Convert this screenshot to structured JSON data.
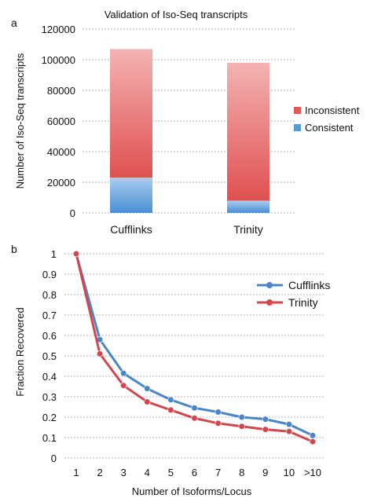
{
  "chart_data": [
    {
      "panel_label": "a",
      "type": "bar",
      "stacked": true,
      "title": "Validation of Iso-Seq transcripts",
      "xlabel": "",
      "ylabel": "Number of Iso-Seq transcripts",
      "categories": [
        "Cufflinks",
        "Trinity"
      ],
      "series": [
        {
          "name": "Consistent",
          "values": [
            23000,
            8000
          ]
        },
        {
          "name": "Inconsistent",
          "values": [
            84000,
            90000
          ]
        }
      ],
      "ylim": [
        0,
        120000
      ],
      "yticks": [
        "0",
        "20000",
        "40000",
        "60000",
        "80000",
        "100000",
        "120000"
      ],
      "grid": true,
      "legend_position": "right",
      "legend_order": [
        "Inconsistent",
        "Consistent"
      ],
      "colors": {
        "Consistent": "#5b9bd5",
        "Inconsistent": "#e05a5a"
      }
    },
    {
      "panel_label": "b",
      "type": "line",
      "title": "",
      "xlabel": "Number of Isoforms/Locus",
      "ylabel": "Fraction Recovered",
      "categories": [
        "1",
        "2",
        "3",
        "4",
        "5",
        "6",
        "7",
        "8",
        "9",
        "10",
        ">10"
      ],
      "series": [
        {
          "name": "Cufflinks",
          "values": [
            1.0,
            0.58,
            0.415,
            0.34,
            0.285,
            0.245,
            0.225,
            0.2,
            0.19,
            0.165,
            0.11
          ]
        },
        {
          "name": "Trinity",
          "values": [
            1.0,
            0.51,
            0.355,
            0.275,
            0.235,
            0.195,
            0.17,
            0.155,
            0.14,
            0.13,
            0.08
          ]
        }
      ],
      "ylim": [
        0,
        1
      ],
      "yticks": [
        "0",
        "0.1",
        "0.2",
        "0.3",
        "0.4",
        "0.5",
        "0.6",
        "0.7",
        "0.8",
        "0.9",
        "1"
      ],
      "grid": true,
      "legend_position": "top-right",
      "colors": {
        "Cufflinks": "#4a86c5",
        "Trinity": "#d0474f"
      }
    }
  ]
}
